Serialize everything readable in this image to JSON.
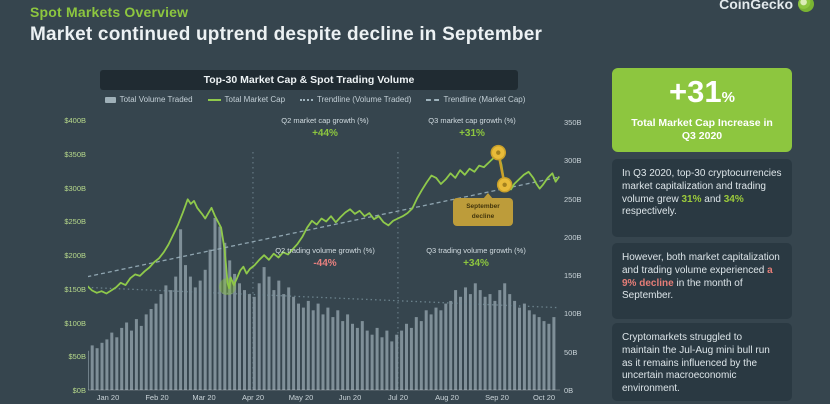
{
  "header": {
    "eyebrow": "Spot Markets Overview",
    "title": "Market continued uptrend despite decline in September",
    "brand": "CoinGecko"
  },
  "chart_data": {
    "type": "bar+line combo",
    "title": "Top-30 Market Cap & Spot Trading Volume",
    "legend": {
      "items": [
        {
          "label": "Total Volume Traded",
          "marker": "bar"
        },
        {
          "label": "Total Market Cap",
          "marker": "line"
        },
        {
          "label": "Trendline (Volume Traded)",
          "marker": "dotted"
        },
        {
          "label": "Trendline (Market Cap)",
          "marker": "dashed"
        }
      ]
    },
    "x_tick_labels": [
      "Jan 20",
      "Feb 20",
      "Mar 20",
      "Apr 20",
      "May 20",
      "Jun 20",
      "Jul 20",
      "Aug 20",
      "Sep 20",
      "Oct 20"
    ],
    "month_start_days": [
      0,
      31,
      60,
      91,
      121,
      152,
      182,
      213,
      244,
      274
    ],
    "left_axis": {
      "series": "Total Volume Traded",
      "labels": [
        "$400B",
        "$350B",
        "$300B",
        "$250B",
        "$200B",
        "$150B",
        "$100B",
        "$50B",
        "$0B"
      ],
      "min": 0,
      "max": 400
    },
    "right_axis": {
      "series": "Total Market Cap",
      "labels": [
        "350B",
        "300B",
        "250B",
        "200B",
        "150B",
        "100B",
        "50B",
        "0B"
      ],
      "min": 0,
      "max": 350
    },
    "market_cap_line": {
      "name": "Total Market Cap",
      "axis": "right",
      "color": "#8fc94b",
      "points": [
        [
          -13,
          136
        ],
        [
          -10,
          130
        ],
        [
          -7,
          127
        ],
        [
          -4,
          129
        ],
        [
          -1,
          126
        ],
        [
          2,
          130
        ],
        [
          5,
          134
        ],
        [
          8,
          140
        ],
        [
          11,
          137
        ],
        [
          14,
          146
        ],
        [
          17,
          151
        ],
        [
          20,
          149
        ],
        [
          23,
          155
        ],
        [
          26,
          160
        ],
        [
          29,
          167
        ],
        [
          32,
          172
        ],
        [
          35,
          180
        ],
        [
          38,
          190
        ],
        [
          41,
          203
        ],
        [
          44,
          216
        ],
        [
          47,
          232
        ],
        [
          50,
          249
        ],
        [
          52,
          243
        ],
        [
          54,
          247
        ],
        [
          56,
          238
        ],
        [
          59,
          230
        ],
        [
          61,
          224
        ],
        [
          63,
          231
        ],
        [
          65,
          238
        ],
        [
          67,
          228
        ],
        [
          69,
          220
        ],
        [
          71,
          212
        ],
        [
          73,
          186
        ],
        [
          74,
          165
        ],
        [
          75,
          140
        ],
        [
          76,
          133
        ],
        [
          77,
          147
        ],
        [
          79,
          137
        ],
        [
          81,
          146
        ],
        [
          83,
          156
        ],
        [
          85,
          161
        ],
        [
          87,
          152
        ],
        [
          89,
          158
        ],
        [
          92,
          163
        ],
        [
          95,
          170
        ],
        [
          98,
          176
        ],
        [
          101,
          170
        ],
        [
          104,
          178
        ],
        [
          107,
          173
        ],
        [
          110,
          180
        ],
        [
          113,
          177
        ],
        [
          116,
          184
        ],
        [
          119,
          191
        ],
        [
          122,
          200
        ],
        [
          125,
          212
        ],
        [
          128,
          221
        ],
        [
          131,
          216
        ],
        [
          134,
          224
        ],
        [
          137,
          220
        ],
        [
          140,
          227
        ],
        [
          143,
          219
        ],
        [
          146,
          226
        ],
        [
          149,
          232
        ],
        [
          152,
          236
        ],
        [
          155,
          230
        ],
        [
          158,
          234
        ],
        [
          161,
          227
        ],
        [
          164,
          231
        ],
        [
          167,
          223
        ],
        [
          170,
          227
        ],
        [
          173,
          219
        ],
        [
          176,
          215
        ],
        [
          179,
          221
        ],
        [
          182,
          224
        ],
        [
          185,
          227
        ],
        [
          188,
          231
        ],
        [
          191,
          237
        ],
        [
          194,
          250
        ],
        [
          197,
          261
        ],
        [
          200,
          271
        ],
        [
          203,
          280
        ],
        [
          206,
          277
        ],
        [
          209,
          269
        ],
        [
          212,
          275
        ],
        [
          215,
          283
        ],
        [
          218,
          277
        ],
        [
          221,
          287
        ],
        [
          224,
          281
        ],
        [
          227,
          289
        ],
        [
          230,
          285
        ],
        [
          233,
          293
        ],
        [
          236,
          291
        ],
        [
          239,
          297
        ],
        [
          242,
          303
        ],
        [
          245,
          310
        ],
        [
          247,
          294
        ],
        [
          249,
          268
        ],
        [
          251,
          264
        ],
        [
          253,
          262
        ],
        [
          255,
          269
        ],
        [
          258,
          275
        ],
        [
          261,
          281
        ],
        [
          264,
          285
        ],
        [
          267,
          277
        ],
        [
          269,
          269
        ],
        [
          271,
          263
        ],
        [
          273,
          268
        ],
        [
          276,
          277
        ],
        [
          279,
          283
        ],
        [
          281,
          272
        ],
        [
          283,
          278
        ]
      ]
    },
    "volume_bars": {
      "name": "Total Volume Traded",
      "axis": "left",
      "color": "#93a4ad",
      "start_day": -13,
      "day_step": 3.083,
      "values": [
        58,
        66,
        62,
        70,
        75,
        85,
        78,
        92,
        100,
        88,
        105,
        95,
        112,
        120,
        128,
        142,
        155,
        148,
        168,
        238,
        185,
        168,
        152,
        162,
        178,
        208,
        255,
        242,
        218,
        192,
        172,
        158,
        148,
        142,
        138,
        158,
        182,
        168,
        148,
        162,
        142,
        152,
        138,
        128,
        122,
        132,
        118,
        128,
        112,
        122,
        108,
        118,
        102,
        112,
        98,
        92,
        102,
        88,
        82,
        92,
        78,
        88,
        72,
        82,
        88,
        98,
        92,
        108,
        102,
        118,
        112,
        122,
        118,
        128,
        132,
        148,
        138,
        152,
        142,
        158,
        148,
        138,
        142,
        132,
        148,
        158,
        142,
        132,
        122,
        128,
        118,
        112,
        108,
        102,
        98,
        108
      ]
    },
    "trendlines": {
      "market_cap": {
        "axis": "right",
        "from": [
          -13,
          148
        ],
        "to": [
          283,
          278
        ],
        "style": "dashed",
        "color": "#9fb6c2"
      },
      "volume": {
        "axis": "left",
        "from": [
          -13,
          152
        ],
        "to": [
          283,
          122
        ],
        "style": "dotted",
        "color": "#78909b"
      }
    },
    "quarter_lines_days": [
      91,
      182
    ],
    "annotations": {
      "q2_market_cap_growth": {
        "label": "Q2 market cap growth (%)",
        "value": "+44%",
        "color": "#8dc63f"
      },
      "q3_market_cap_growth": {
        "label": "Q3 market cap growth (%)",
        "value": "+31%",
        "color": "#8dc63f"
      },
      "q2_trading_volume_growth": {
        "label": "Q2 trading volume growth (%)",
        "value": "-44%",
        "color": "#e8807f"
      },
      "q3_trading_volume_growth": {
        "label": "Q3 trading volume growth (%)",
        "value": "+34%",
        "color": "#8dc63f"
      },
      "september_decline_badge": {
        "line1": "September",
        "line2": "decline"
      },
      "markers": {
        "sep_peak_day": 245,
        "sep_peak_value": 310,
        "sep_trough_day": 249,
        "sep_trough_value": 268,
        "crash_low_day": 75,
        "crash_low_value": 135,
        "marker_color": "#e8bb39",
        "connector_color": "#c9a02a",
        "glow_color": "#8dc63f"
      }
    }
  },
  "sidebar": {
    "highlight": {
      "value": "+31",
      "unit": "%",
      "caption": "Total Market Cap Increase in Q3 2020",
      "color": "#8dc63f"
    },
    "notes": [
      {
        "parts": [
          {
            "t": "In Q3 2020, top-30 cryptocurrencies market capitalization and trading volume grew "
          },
          {
            "t": "31%",
            "c": "green"
          },
          {
            "t": " and "
          },
          {
            "t": "34%",
            "c": "green"
          },
          {
            "t": " respectively."
          }
        ]
      },
      {
        "parts": [
          {
            "t": "However, both market capitalization and trading volume experienced "
          },
          {
            "t": "a 9% decline",
            "c": "red"
          },
          {
            "t": " in the month of September."
          }
        ]
      },
      {
        "parts": [
          {
            "t": "Cryptomarkets struggled to maintain the Jul-Aug mini bull run as it remains influenced by the uncertain macroeconomic environment."
          }
        ]
      }
    ]
  }
}
